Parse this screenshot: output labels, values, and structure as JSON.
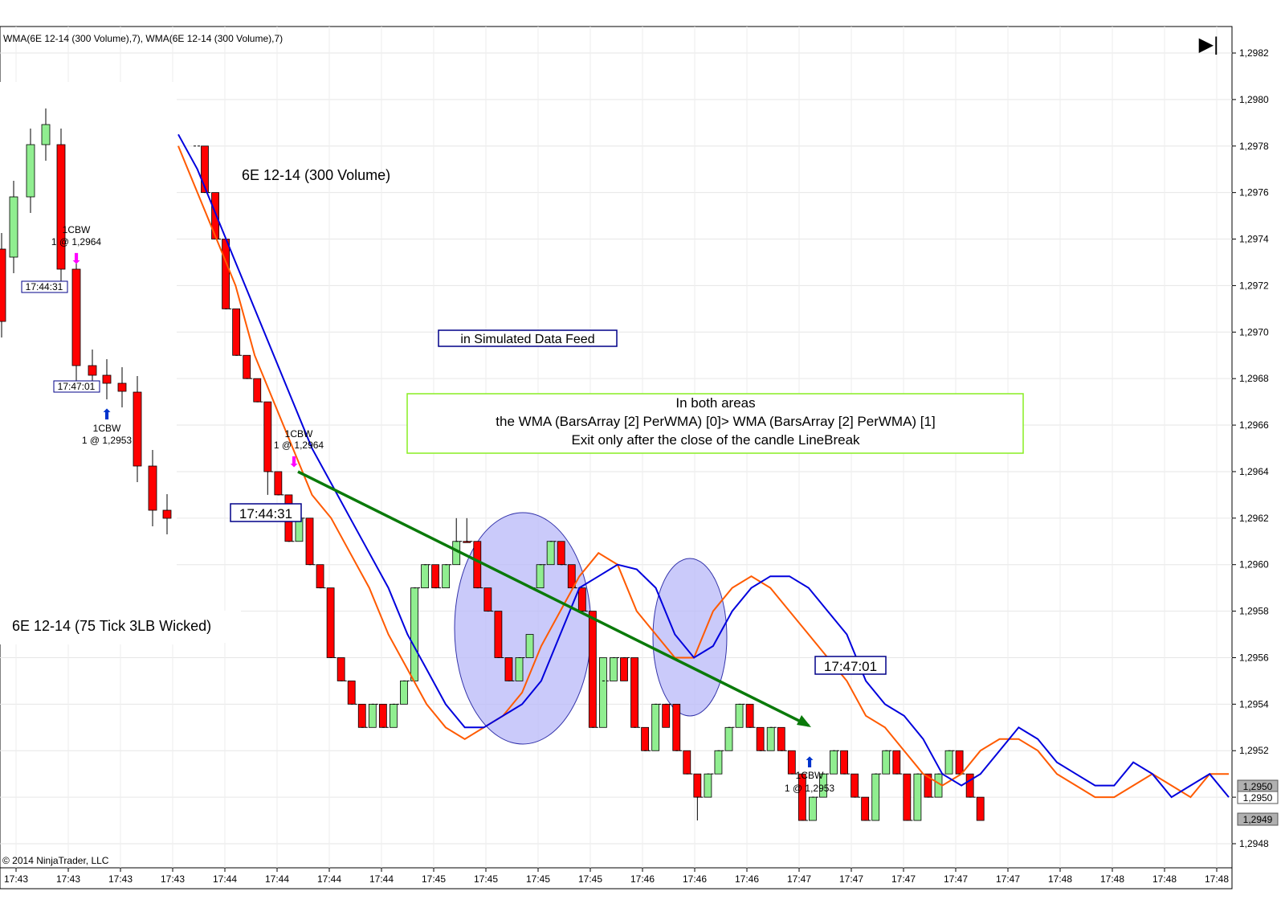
{
  "indicator_header": "WMA(6E 12-14 (300 Volume),7), WMA(6E 12-14 (300 Volume),7)",
  "copyright": "© 2014 NinjaTrader, LLC",
  "panel_labels": {
    "main_series": "6E 12-14 (300 Volume)",
    "inset_series": "6E 12-14 (75 Tick 3LB Wicked)"
  },
  "notes": {
    "simulated": "in Simulated Data Feed",
    "explanation": [
      "In both areas",
      "the WMA (BarsArray [2] PerWMA) [0]> WMA (BarsArray [2] PerWMA) [1]",
      "Exit only after the close of the candle LineBreak"
    ]
  },
  "time_labels": {
    "entry": "17:44:31",
    "exit": "17:47:01"
  },
  "trade_markers": {
    "entry_name": "1CBW",
    "entry_fill": "1 @ 1,2964",
    "exit_name": "1CBW",
    "exit_fill": "1 @ 1,2953"
  },
  "inset_markers": {
    "entry_name": "1CBW",
    "entry_fill": "1 @ 1,2964",
    "entry_time": "17:44:31",
    "exit_time": "17:47:01",
    "exit_name": "1CBW",
    "exit_fill": "1 @ 1,2953"
  },
  "price_badges": [
    "1,2950",
    "1,2950",
    "1,2949"
  ],
  "chart_data": {
    "type": "candlestick",
    "ylim": [
      1.2947,
      1.2983
    ],
    "y_ticks": [
      "1,2982",
      "1,2980",
      "1,2978",
      "1,2976",
      "1,2974",
      "1,2972",
      "1,2970",
      "1,2968",
      "1,2966",
      "1,2964",
      "1,2962",
      "1,2960",
      "1,2958",
      "1,2956",
      "1,2954",
      "1,2952",
      "1,2950",
      "1,2948"
    ],
    "x_tick_labels": [
      "17:43",
      "17:43",
      "17:43",
      "17:43",
      "17:44",
      "17:44",
      "17:44",
      "17:44",
      "17:45",
      "17:45",
      "17:45",
      "17:45",
      "17:46",
      "17:46",
      "17:46",
      "17:47",
      "17:47",
      "17:47",
      "17:47",
      "17:47",
      "17:48",
      "17:48",
      "17:48",
      "17:48"
    ],
    "bullish_color": "#90EE90",
    "bearish_color": "#FF0000",
    "candles": [
      {
        "o": 1.2978,
        "c": 1.2976,
        "h": 1.2978,
        "l": 1.2976
      },
      {
        "o": 1.2976,
        "c": 1.2974,
        "h": 1.2976,
        "l": 1.2974
      },
      {
        "o": 1.2974,
        "c": 1.2971,
        "h": 1.2974,
        "l": 1.2971
      },
      {
        "o": 1.2971,
        "c": 1.2969,
        "h": 1.2971,
        "l": 1.2969
      },
      {
        "o": 1.2969,
        "c": 1.2968,
        "h": 1.2969,
        "l": 1.2968
      },
      {
        "o": 1.2968,
        "c": 1.2967,
        "h": 1.2968,
        "l": 1.2967
      },
      {
        "o": 1.2967,
        "c": 1.2964,
        "h": 1.2967,
        "l": 1.2963
      },
      {
        "o": 1.2964,
        "c": 1.2963,
        "h": 1.2964,
        "l": 1.2963
      },
      {
        "o": 1.2963,
        "c": 1.2961,
        "h": 1.2963,
        "l": 1.2961
      },
      {
        "o": 1.2961,
        "c": 1.2962,
        "h": 1.2962,
        "l": 1.2961
      },
      {
        "o": 1.2962,
        "c": 1.296,
        "h": 1.2962,
        "l": 1.296
      },
      {
        "o": 1.296,
        "c": 1.2959,
        "h": 1.296,
        "l": 1.2959
      },
      {
        "o": 1.2959,
        "c": 1.2956,
        "h": 1.2959,
        "l": 1.2956
      },
      {
        "o": 1.2956,
        "c": 1.2955,
        "h": 1.2956,
        "l": 1.2955
      },
      {
        "o": 1.2955,
        "c": 1.2954,
        "h": 1.2955,
        "l": 1.2954
      },
      {
        "o": 1.2954,
        "c": 1.2953,
        "h": 1.2954,
        "l": 1.2953
      },
      {
        "o": 1.2953,
        "c": 1.2954,
        "h": 1.2954,
        "l": 1.2953
      },
      {
        "o": 1.2954,
        "c": 1.2953,
        "h": 1.2954,
        "l": 1.2953
      },
      {
        "o": 1.2953,
        "c": 1.2954,
        "h": 1.2954,
        "l": 1.2953
      },
      {
        "o": 1.2954,
        "c": 1.2955,
        "h": 1.2955,
        "l": 1.2954
      },
      {
        "o": 1.2955,
        "c": 1.2959,
        "h": 1.2959,
        "l": 1.2955
      },
      {
        "o": 1.2959,
        "c": 1.296,
        "h": 1.296,
        "l": 1.2959
      },
      {
        "o": 1.296,
        "c": 1.2959,
        "h": 1.296,
        "l": 1.2959
      },
      {
        "o": 1.2959,
        "c": 1.296,
        "h": 1.296,
        "l": 1.2959
      },
      {
        "o": 1.296,
        "c": 1.2961,
        "h": 1.2962,
        "l": 1.296
      },
      {
        "o": 1.2961,
        "c": 1.2961,
        "h": 1.2962,
        "l": 1.2961
      },
      {
        "o": 1.2961,
        "c": 1.2959,
        "h": 1.2961,
        "l": 1.2959
      },
      {
        "o": 1.2959,
        "c": 1.2958,
        "h": 1.2959,
        "l": 1.2958
      },
      {
        "o": 1.2958,
        "c": 1.2956,
        "h": 1.2958,
        "l": 1.2956
      },
      {
        "o": 1.2956,
        "c": 1.2955,
        "h": 1.2956,
        "l": 1.2955
      },
      {
        "o": 1.2955,
        "c": 1.2956,
        "h": 1.2956,
        "l": 1.2955
      },
      {
        "o": 1.2956,
        "c": 1.2957,
        "h": 1.2957,
        "l": 1.2956
      },
      {
        "o": 1.2959,
        "c": 1.296,
        "h": 1.296,
        "l": 1.2959
      },
      {
        "o": 1.296,
        "c": 1.2961,
        "h": 1.2961,
        "l": 1.296
      },
      {
        "o": 1.2961,
        "c": 1.296,
        "h": 1.2961,
        "l": 1.296
      },
      {
        "o": 1.296,
        "c": 1.2959,
        "h": 1.296,
        "l": 1.2959
      },
      {
        "o": 1.2959,
        "c": 1.2958,
        "h": 1.2959,
        "l": 1.2958
      },
      {
        "o": 1.2958,
        "c": 1.2953,
        "h": 1.2958,
        "l": 1.2953
      },
      {
        "o": 1.2953,
        "c": 1.2956,
        "h": 1.2956,
        "l": 1.2953
      },
      {
        "o": 1.2955,
        "c": 1.2956,
        "h": 1.2956,
        "l": 1.2955
      },
      {
        "o": 1.2956,
        "c": 1.2955,
        "h": 1.2956,
        "l": 1.2955
      },
      {
        "o": 1.2956,
        "c": 1.2953,
        "h": 1.2956,
        "l": 1.2953
      },
      {
        "o": 1.2953,
        "c": 1.2952,
        "h": 1.2953,
        "l": 1.2952
      },
      {
        "o": 1.2952,
        "c": 1.2954,
        "h": 1.2954,
        "l": 1.2952
      },
      {
        "o": 1.2954,
        "c": 1.2953,
        "h": 1.2954,
        "l": 1.2953
      },
      {
        "o": 1.2954,
        "c": 1.2952,
        "h": 1.2954,
        "l": 1.2952
      },
      {
        "o": 1.2952,
        "c": 1.2951,
        "h": 1.2952,
        "l": 1.2951
      },
      {
        "o": 1.2951,
        "c": 1.295,
        "h": 1.2951,
        "l": 1.2949
      },
      {
        "o": 1.295,
        "c": 1.2951,
        "h": 1.2951,
        "l": 1.295
      },
      {
        "o": 1.2951,
        "c": 1.2952,
        "h": 1.2952,
        "l": 1.2951
      },
      {
        "o": 1.2952,
        "c": 1.2953,
        "h": 1.2953,
        "l": 1.2952
      },
      {
        "o": 1.2953,
        "c": 1.2954,
        "h": 1.2954,
        "l": 1.2953
      },
      {
        "o": 1.2954,
        "c": 1.2953,
        "h": 1.2954,
        "l": 1.2953
      },
      {
        "o": 1.2953,
        "c": 1.2952,
        "h": 1.2953,
        "l": 1.2952
      },
      {
        "o": 1.2952,
        "c": 1.2953,
        "h": 1.2953,
        "l": 1.2952
      },
      {
        "o": 1.2953,
        "c": 1.2952,
        "h": 1.2953,
        "l": 1.2952
      },
      {
        "o": 1.2952,
        "c": 1.2951,
        "h": 1.2952,
        "l": 1.2951
      },
      {
        "o": 1.2951,
        "c": 1.2949,
        "h": 1.2951,
        "l": 1.2949
      },
      {
        "o": 1.2949,
        "c": 1.295,
        "h": 1.295,
        "l": 1.2949
      },
      {
        "o": 1.295,
        "c": 1.2951,
        "h": 1.2951,
        "l": 1.295
      },
      {
        "o": 1.2951,
        "c": 1.2952,
        "h": 1.2952,
        "l": 1.2951
      },
      {
        "o": 1.2952,
        "c": 1.2951,
        "h": 1.2952,
        "l": 1.2951
      },
      {
        "o": 1.2951,
        "c": 1.295,
        "h": 1.2951,
        "l": 1.295
      },
      {
        "o": 1.295,
        "c": 1.2949,
        "h": 1.295,
        "l": 1.2949
      },
      {
        "o": 1.2949,
        "c": 1.2951,
        "h": 1.2951,
        "l": 1.2949
      },
      {
        "o": 1.2951,
        "c": 1.2952,
        "h": 1.2952,
        "l": 1.2951
      },
      {
        "o": 1.2952,
        "c": 1.2951,
        "h": 1.2952,
        "l": 1.2951
      },
      {
        "o": 1.2951,
        "c": 1.2949,
        "h": 1.2951,
        "l": 1.2949
      },
      {
        "o": 1.2949,
        "c": 1.2951,
        "h": 1.2951,
        "l": 1.2949
      },
      {
        "o": 1.2951,
        "c": 1.295,
        "h": 1.2951,
        "l": 1.295
      },
      {
        "o": 1.295,
        "c": 1.2951,
        "h": 1.2951,
        "l": 1.295
      },
      {
        "o": 1.2951,
        "c": 1.2952,
        "h": 1.2952,
        "l": 1.2951
      },
      {
        "o": 1.2952,
        "c": 1.2951,
        "h": 1.2952,
        "l": 1.2951
      },
      {
        "o": 1.2951,
        "c": 1.295,
        "h": 1.2951,
        "l": 1.295
      },
      {
        "o": 1.295,
        "c": 1.2949,
        "h": 1.295,
        "l": 1.2949
      }
    ],
    "wma_blue": [
      1.29785,
      1.2977,
      1.2975,
      1.2973,
      1.2971,
      1.2969,
      1.2967,
      1.2965,
      1.29635,
      1.2962,
      1.29605,
      1.2959,
      1.2957,
      1.29555,
      1.2954,
      1.2953,
      1.2953,
      1.29535,
      1.2954,
      1.2955,
      1.2957,
      1.2959,
      1.29595,
      1.296,
      1.29598,
      1.2959,
      1.2957,
      1.2956,
      1.29565,
      1.2958,
      1.2959,
      1.29595,
      1.29595,
      1.2959,
      1.2958,
      1.2957,
      1.2955,
      1.2954,
      1.29535,
      1.29525,
      1.2951,
      1.29505,
      1.2951,
      1.2952,
      1.2953,
      1.29525,
      1.29515,
      1.2951,
      1.29505,
      1.29505,
      1.29515,
      1.2951,
      1.295,
      1.29505,
      1.2951,
      1.295
    ],
    "wma_orange": [
      1.2978,
      1.2976,
      1.2974,
      1.2972,
      1.2969,
      1.2967,
      1.2965,
      1.2963,
      1.2962,
      1.29605,
      1.2959,
      1.2957,
      1.29555,
      1.2954,
      1.2953,
      1.29525,
      1.2953,
      1.29535,
      1.29545,
      1.29565,
      1.2958,
      1.29595,
      1.29605,
      1.296,
      1.2958,
      1.2957,
      1.2956,
      1.2956,
      1.2958,
      1.2959,
      1.29595,
      1.2959,
      1.2958,
      1.2957,
      1.2956,
      1.2955,
      1.29535,
      1.2953,
      1.2952,
      1.2951,
      1.29505,
      1.2951,
      1.2952,
      1.29525,
      1.29525,
      1.2952,
      1.2951,
      1.29505,
      1.295,
      1.295,
      1.29505,
      1.2951,
      1.29505,
      1.295,
      1.2951,
      1.2951
    ]
  }
}
